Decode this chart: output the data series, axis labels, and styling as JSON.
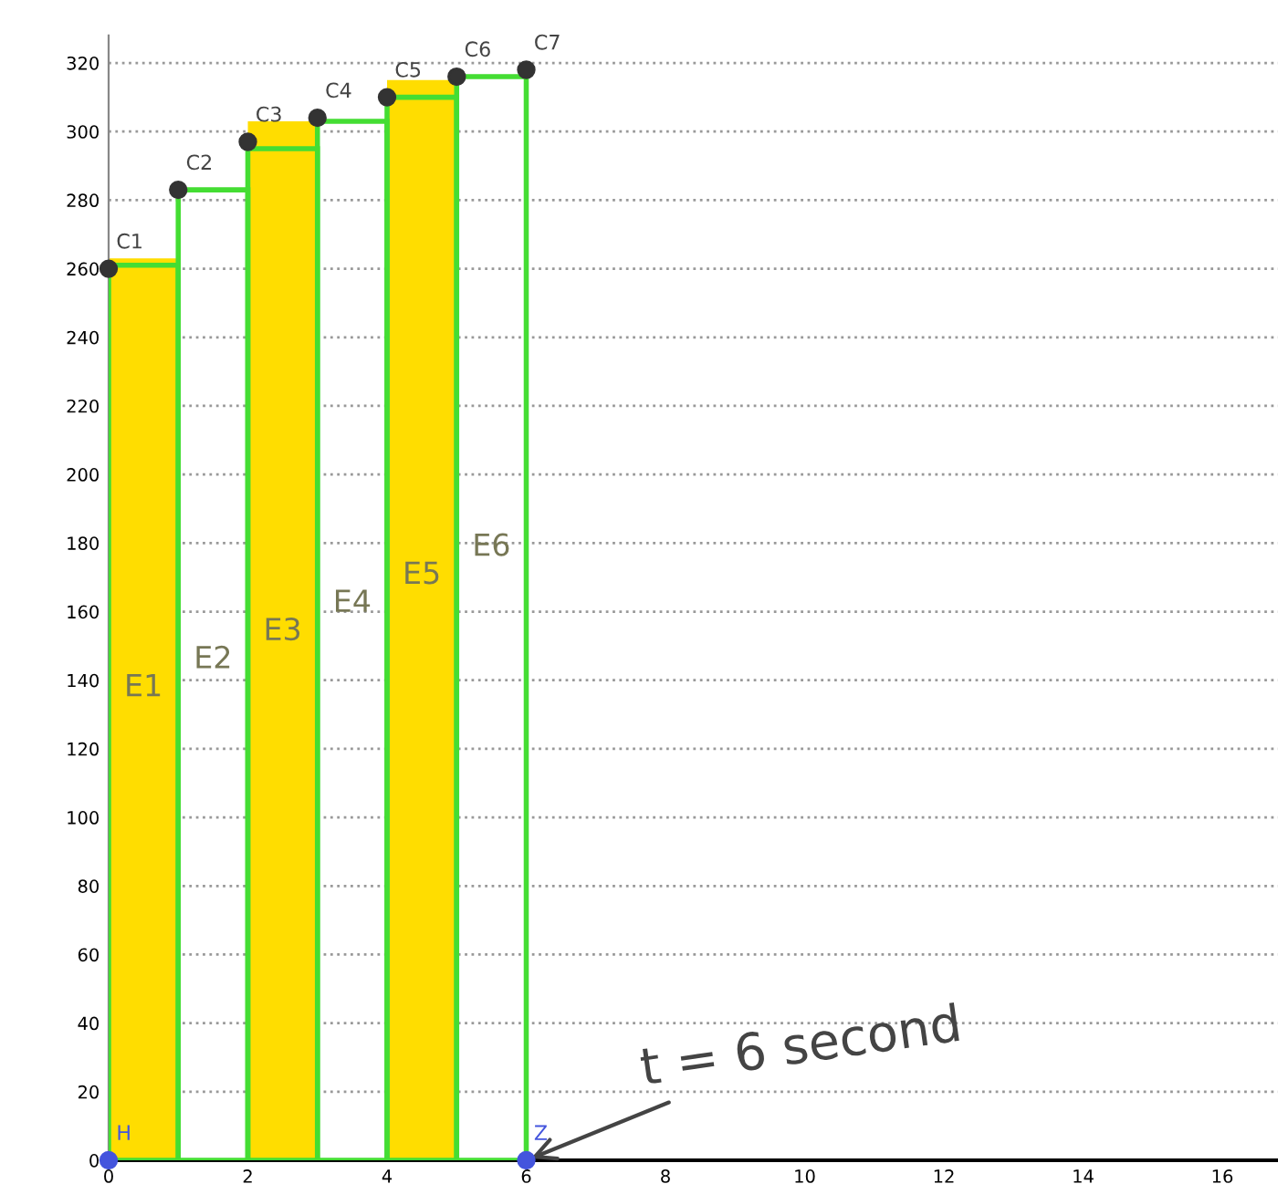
{
  "chart_data": {
    "type": "bar",
    "xlim": [
      0,
      16.8
    ],
    "ylim": [
      0,
      328
    ],
    "xticks": [
      0,
      2,
      4,
      6,
      8,
      10,
      12,
      14,
      16
    ],
    "yticks": [
      0,
      20,
      40,
      60,
      80,
      100,
      120,
      140,
      160,
      180,
      200,
      220,
      240,
      260,
      280,
      300,
      320
    ],
    "grid": "y",
    "series": [
      {
        "color": "#ffdd00",
        "x": [
          0,
          1,
          2,
          3,
          4
        ],
        "values": [
          263,
          null,
          303,
          null,
          315
        ]
      },
      {
        "color": "#44dd33",
        "x": [
          0,
          1,
          2,
          3,
          4,
          5
        ],
        "values": [
          261,
          283,
          295,
          303,
          310,
          316
        ]
      },
      {
        "type": "scatter",
        "color": "#333333",
        "marker": "circle",
        "x": [
          0,
          1,
          2,
          3,
          4,
          5,
          6
        ],
        "values": [
          260,
          283,
          297,
          304,
          310,
          316,
          318
        ]
      },
      {
        "type": "scatter",
        "color": "#4455dd",
        "marker": "circle",
        "x": [
          0,
          6
        ],
        "values": [
          0,
          0
        ]
      }
    ],
    "annotations": [
      {
        "text": "C1",
        "x": 0,
        "y": 260
      },
      {
        "text": "C2",
        "x": 1,
        "y": 283
      },
      {
        "text": "C3",
        "x": 2,
        "y": 297
      },
      {
        "text": "C4",
        "x": 3,
        "y": 304
      },
      {
        "text": "C5",
        "x": 4,
        "y": 310
      },
      {
        "text": "C6",
        "x": 5,
        "y": 316
      },
      {
        "text": "C7",
        "x": 6,
        "y": 318
      },
      {
        "text": "H",
        "x": 0,
        "y": 0
      },
      {
        "text": "Z",
        "x": 6,
        "y": 0
      },
      "E1",
      "E2",
      "E3",
      "E4",
      "E5",
      "E6",
      {
        "text": "t = 6 second",
        "x": 6,
        "y": 0
      }
    ]
  }
}
